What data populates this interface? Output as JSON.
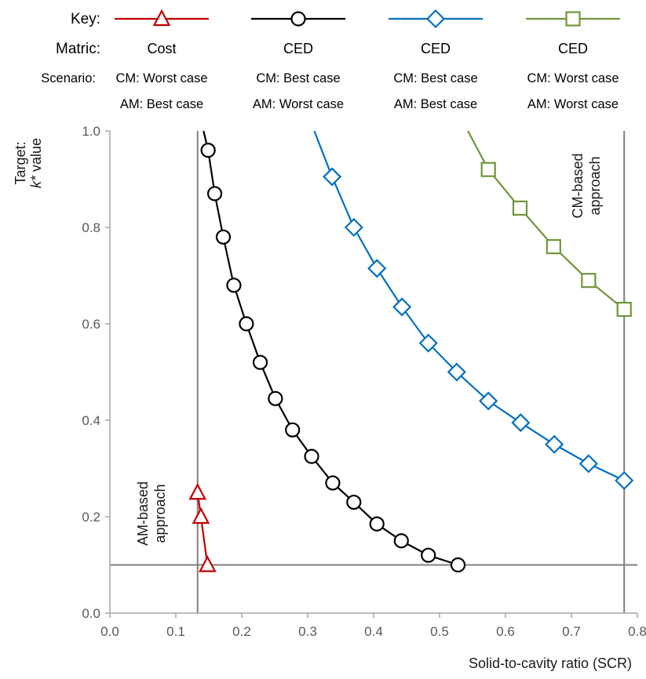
{
  "key": {
    "row_labels": {
      "key": "Key:",
      "metric": "Matric:",
      "scenario": "Scenario:"
    },
    "entries": [
      {
        "metric": "Cost",
        "scenario_cm": "CM: Worst case",
        "scenario_am": "AM: Best case",
        "marker": "triangle",
        "color": "#C00000"
      },
      {
        "metric": "CED",
        "scenario_cm": "CM: Best case",
        "scenario_am": "AM: Worst case",
        "marker": "circle",
        "color": "#000000"
      },
      {
        "metric": "CED",
        "scenario_cm": "CM: Best case",
        "scenario_am": "AM: Best case",
        "marker": "diamond",
        "color": "#0070C0"
      },
      {
        "metric": "CED",
        "scenario_cm": "CM: Worst case",
        "scenario_am": "AM: Worst case",
        "marker": "square",
        "color": "#70963C"
      }
    ]
  },
  "chart_data": {
    "type": "line",
    "xlabel": "Solid-to-cavity  ratio (SCR)",
    "ylabel_line1": "Target:",
    "ylabel_line2_italic": "k*",
    "ylabel_line2_rest": " value",
    "xlim": [
      0.0,
      0.8
    ],
    "ylim": [
      0.0,
      1.0
    ],
    "x_ticks": [
      "0.0",
      "0.1",
      "0.2",
      "0.3",
      "0.4",
      "0.5",
      "0.6",
      "0.7",
      "0.8"
    ],
    "y_ticks": [
      "0.0",
      "0.2",
      "0.4",
      "0.6",
      "0.8",
      "1.0"
    ],
    "grid": false,
    "reference_lines": {
      "am_based_scr": 0.133,
      "cm_based_scr": 0.78,
      "k_min": 0.1
    },
    "annotations": {
      "am_line1": "AM-based",
      "am_line2": "approach",
      "cm_line1": "CM-based",
      "cm_line2": "approach"
    },
    "series": [
      {
        "marker": "triangle",
        "color": "#C00000",
        "x": [
          0.133,
          0.138,
          0.148
        ],
        "y": [
          0.25,
          0.2,
          0.1
        ]
      },
      {
        "marker": "circle",
        "color": "#000000",
        "line_start": [
          0.142,
          1.0
        ],
        "x": [
          0.149,
          0.159,
          0.172,
          0.188,
          0.207,
          0.228,
          0.251,
          0.277,
          0.306,
          0.338,
          0.37,
          0.405,
          0.442,
          0.483,
          0.528
        ],
        "y": [
          0.96,
          0.87,
          0.78,
          0.68,
          0.6,
          0.52,
          0.445,
          0.38,
          0.325,
          0.27,
          0.23,
          0.185,
          0.15,
          0.12,
          0.1
        ]
      },
      {
        "marker": "diamond",
        "color": "#0070C0",
        "line_start": [
          0.31,
          1.0
        ],
        "x": [
          0.337,
          0.37,
          0.405,
          0.443,
          0.483,
          0.526,
          0.574,
          0.623,
          0.674,
          0.726,
          0.78
        ],
        "y": [
          0.905,
          0.8,
          0.715,
          0.635,
          0.56,
          0.5,
          0.44,
          0.395,
          0.35,
          0.31,
          0.275
        ]
      },
      {
        "marker": "square",
        "color": "#70963C",
        "line_start": [
          0.543,
          1.0
        ],
        "x": [
          0.574,
          0.622,
          0.673,
          0.726,
          0.78
        ],
        "y": [
          0.92,
          0.84,
          0.76,
          0.69,
          0.63
        ]
      }
    ]
  }
}
